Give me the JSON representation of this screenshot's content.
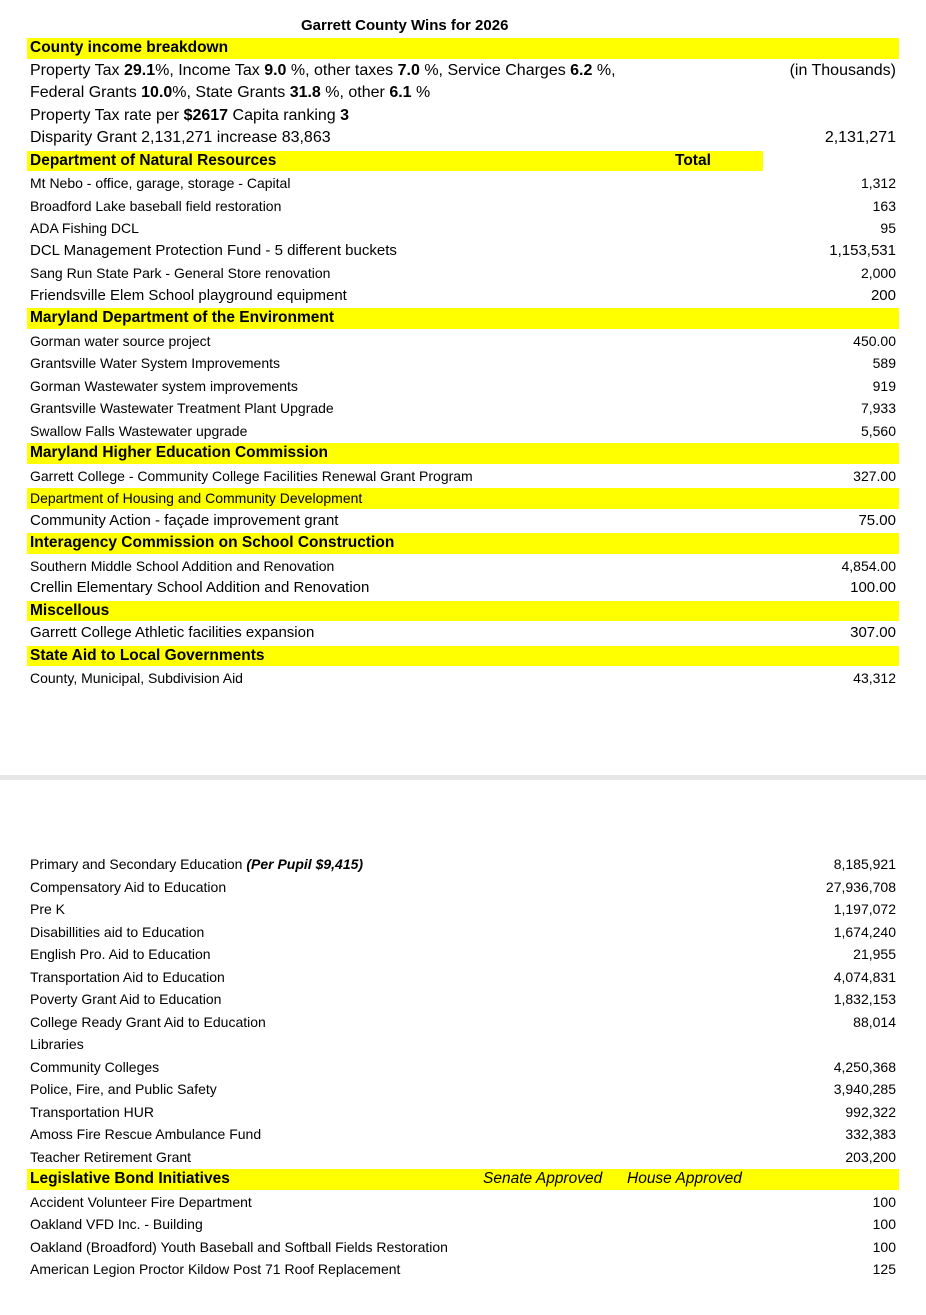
{
  "title": "Garrett County Wins for 2026",
  "page1": [
    {
      "type": "section",
      "label": "County income breakdown"
    },
    {
      "type": "rich",
      "size": "big",
      "segments": [
        {
          "t": "Property Tax  "
        },
        {
          "t": "29.1",
          "b": true
        },
        {
          "t": "%, Income Tax "
        },
        {
          "t": "9.0",
          "b": true
        },
        {
          "t": " %, other taxes "
        },
        {
          "t": "7.0",
          "b": true
        },
        {
          "t": " %, Service Charges "
        },
        {
          "t": "6.2",
          "b": true
        },
        {
          "t": " %,"
        }
      ],
      "amount": "(in Thousands)"
    },
    {
      "type": "rich",
      "size": "big",
      "segments": [
        {
          "t": "Federal Grants "
        },
        {
          "t": "10.0",
          "b": true
        },
        {
          "t": "%, State Grants "
        },
        {
          "t": "31.8",
          "b": true
        },
        {
          "t": " %, other "
        },
        {
          "t": "6.1",
          "b": true
        },
        {
          "t": " %"
        }
      ]
    },
    {
      "type": "rich",
      "size": "big",
      "segments": [
        {
          "t": "Property Tax  rate  per  "
        },
        {
          "t": "$2617",
          "b": true
        },
        {
          "t": " Capita ranking "
        },
        {
          "t": "3",
          "b": true
        }
      ]
    },
    {
      "type": "rich",
      "size": "big",
      "segments": [
        {
          "t": "Disparity Grant      2,131,271 increase 83,863"
        }
      ],
      "amount": "2,131,271"
    },
    {
      "type": "section",
      "label": "Department of Natural Resources",
      "short": true,
      "extra": "Total"
    },
    {
      "type": "item",
      "size": "small",
      "label": "Mt Nebo - office, garage, storage - Capital",
      "amount": "1,312"
    },
    {
      "type": "item",
      "size": "small",
      "label": "Broadford Lake baseball field restoration",
      "amount": "163"
    },
    {
      "type": "item",
      "size": "small",
      "label": "ADA Fishing DCL",
      "amount": "95"
    },
    {
      "type": "item",
      "label": "DCL Management Protection Fund - 5 different buckets",
      "amount": "1,153,531"
    },
    {
      "type": "item",
      "size": "small",
      "label": "Sang Run State Park - General Store renovation",
      "amount": "2,000"
    },
    {
      "type": "item",
      "label": "Friendsville Elem School playground equipment",
      "amount": "200"
    },
    {
      "type": "section",
      "label": "Maryland Department of the Environment"
    },
    {
      "type": "item",
      "size": "small",
      "label": "Gorman water source project",
      "amount": "450.00"
    },
    {
      "type": "item",
      "size": "small",
      "label": "Grantsville Water System Improvements",
      "amount": "589"
    },
    {
      "type": "item",
      "size": "small",
      "label": "Gorman Wastewater system improvements",
      "amount": "919"
    },
    {
      "type": "item",
      "size": "small",
      "label": "Grantsville Wastewater Treatment Plant Upgrade",
      "amount": "7,933"
    },
    {
      "type": "item",
      "size": "small",
      "label": "Swallow Falls Wastewater upgrade",
      "amount": "5,560"
    },
    {
      "type": "section",
      "label": "Maryland Higher Education Commission"
    },
    {
      "type": "item",
      "size": "small",
      "label": "Garrett College - Community College Facilities Renewal Grant Program",
      "amount": "327.00"
    },
    {
      "type": "section",
      "plain": true,
      "label": "Department of Housing and Community Development"
    },
    {
      "type": "item",
      "label": "Community Action - façade improvement grant",
      "amount": "75.00"
    },
    {
      "type": "section",
      "label": "Interagency Commission on School Construction"
    },
    {
      "type": "item",
      "size": "small",
      "label": "Southern Middle School Addition and Renovation",
      "amount": "4,854.00"
    },
    {
      "type": "item",
      "label": "Crellin Elementary School Addition and Renovation",
      "amount": "100.00"
    },
    {
      "type": "section",
      "label": "Miscellous"
    },
    {
      "type": "item",
      "label": "Garrett College Athletic facilities expansion",
      "amount": "307.00"
    },
    {
      "type": "section",
      "label": "State Aid to Local Governments"
    },
    {
      "type": "item",
      "size": "small",
      "label": "County, Municipal, Subdivision Aid",
      "amount": "43,312"
    }
  ],
  "page2": [
    {
      "type": "rich",
      "size": "small",
      "segments": [
        {
          "t": "Primary and Secondary Education "
        },
        {
          "t": "(Per Pupil $9,415)",
          "b": true,
          "i": true
        }
      ],
      "amount": "8,185,921"
    },
    {
      "type": "item",
      "size": "small",
      "label": "Compensatory Aid to Education",
      "amount": "27,936,708"
    },
    {
      "type": "item",
      "size": "small",
      "label": "Pre K",
      "amount": "1,197,072"
    },
    {
      "type": "item",
      "size": "small",
      "label": "Disabillities aid to Education",
      "amount": "1,674,240"
    },
    {
      "type": "item",
      "size": "small",
      "label": "English Pro. Aid to Education",
      "amount": "21,955"
    },
    {
      "type": "item",
      "size": "small",
      "label": "Transportation Aid to Education",
      "amount": "4,074,831"
    },
    {
      "type": "item",
      "size": "small",
      "label": "Poverty Grant Aid to Education",
      "amount": "1,832,153"
    },
    {
      "type": "item",
      "size": "small",
      "label": "College Ready Grant Aid to Education",
      "amount": "88,014"
    },
    {
      "type": "item",
      "size": "small",
      "label": "Libraries"
    },
    {
      "type": "item",
      "size": "small",
      "label": "Community Colleges",
      "amount": "4,250,368"
    },
    {
      "type": "item",
      "size": "small",
      "label": "Police, Fire, and Public Safety",
      "amount": "3,940,285"
    },
    {
      "type": "item",
      "size": "small",
      "label": "Transportation HUR",
      "amount": "992,322"
    },
    {
      "type": "item",
      "size": "small",
      "label": "Amoss Fire Rescue Ambulance Fund",
      "amount": "332,383"
    },
    {
      "type": "item",
      "size": "small",
      "label": "Teacher Retirement Grant",
      "amount": "203,200"
    },
    {
      "type": "section",
      "label": "Legislative Bond Initiatives",
      "italics": [
        "Senate Approved",
        "House Approved"
      ]
    },
    {
      "type": "item",
      "size": "small",
      "label": "Accident Volunteer Fire Department",
      "amount": "100"
    },
    {
      "type": "item",
      "size": "small",
      "label": "Oakland VFD Inc. - Building",
      "amount": "100"
    },
    {
      "type": "item",
      "size": "small",
      "label": "Oakland (Broadford) Youth Baseball and Softball Fields Restoration",
      "amount": "100"
    },
    {
      "type": "item",
      "size": "small",
      "label": "American Legion Proctor Kildow Post 71 Roof Replacement",
      "amount": "125"
    }
  ],
  "colors": {
    "highlight": "#ffff00",
    "separator": "#e6e6e6"
  }
}
